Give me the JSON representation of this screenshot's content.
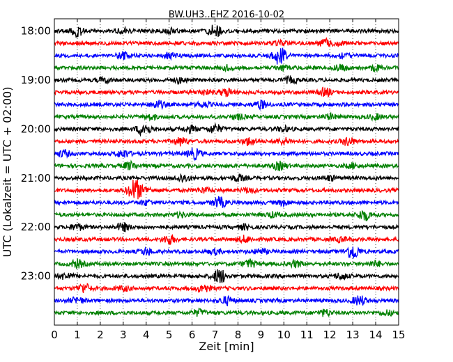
{
  "chart_data": {
    "type": "line",
    "title": "BW.UH3..EHZ 2016-10-02",
    "xlabel": "Zeit  [min]",
    "ylabel": "UTC (Lokalzeit = UTC + 02:00)",
    "xlim": [
      0,
      15
    ],
    "x_ticks": [
      0,
      1,
      2,
      3,
      4,
      5,
      6,
      7,
      8,
      9,
      10,
      11,
      12,
      13,
      14,
      15
    ],
    "x_tick_labels": [
      "0",
      "1",
      "2",
      "3",
      "4",
      "5",
      "6",
      "7",
      "8",
      "9",
      "10",
      "11",
      "12",
      "13",
      "14",
      "15"
    ],
    "ylim": [
      "24:00",
      "17:45"
    ],
    "y_ticks": [
      "18:00",
      "19:00",
      "20:00",
      "21:00",
      "22:00",
      "23:00"
    ],
    "line_interval_min": 15,
    "grid": "vertical-dotted",
    "colors": [
      "#000000",
      "#ff0000",
      "#0000ff",
      "#008000"
    ],
    "series": [
      {
        "start": "18:00",
        "bursts": [
          [
            1.0,
            0.6
          ],
          [
            7.0,
            0.9
          ],
          [
            5.0,
            0.3
          ],
          [
            3.0,
            0.3
          ]
        ]
      },
      {
        "start": "18:15",
        "bursts": [
          [
            11.8,
            0.5
          ],
          [
            9.8,
            0.3
          ],
          [
            12.3,
            0.3
          ]
        ]
      },
      {
        "start": "18:30",
        "bursts": [
          [
            9.8,
            1.2
          ],
          [
            3.0,
            0.4
          ],
          [
            5.0,
            0.3
          ],
          [
            12.5,
            0.3
          ]
        ]
      },
      {
        "start": "18:45",
        "bursts": [
          [
            7.5,
            0.3
          ],
          [
            12.5,
            0.4
          ],
          [
            10.0,
            0.3
          ],
          [
            14.0,
            0.3
          ]
        ]
      },
      {
        "start": "19:00",
        "bursts": [
          [
            10.3,
            0.4
          ],
          [
            2.2,
            0.3
          ],
          [
            5.5,
            0.3
          ]
        ]
      },
      {
        "start": "19:15",
        "bursts": [
          [
            7.5,
            0.5
          ],
          [
            11.8,
            0.5
          ],
          [
            6.5,
            0.3
          ]
        ]
      },
      {
        "start": "19:30",
        "bursts": [
          [
            4.5,
            0.5
          ],
          [
            9.0,
            0.5
          ],
          [
            6.5,
            0.3
          ]
        ]
      },
      {
        "start": "19:45",
        "bursts": [
          [
            4.2,
            0.3
          ],
          [
            8.0,
            0.3
          ],
          [
            12.0,
            0.3
          ],
          [
            14.0,
            0.3
          ]
        ]
      },
      {
        "start": "20:00",
        "bursts": [
          [
            3.9,
            0.9
          ],
          [
            7.0,
            0.6
          ],
          [
            5.9,
            0.4
          ],
          [
            10.0,
            0.3
          ]
        ]
      },
      {
        "start": "20:15",
        "bursts": [
          [
            5.5,
            0.5
          ],
          [
            8.5,
            0.5
          ],
          [
            12.8,
            0.5
          ],
          [
            10.0,
            0.4
          ]
        ]
      },
      {
        "start": "20:30",
        "bursts": [
          [
            6.1,
            0.7
          ],
          [
            3.0,
            0.5
          ],
          [
            0.4,
            0.4
          ]
        ]
      },
      {
        "start": "20:45",
        "bursts": [
          [
            3.3,
            0.5
          ],
          [
            9.8,
            0.5
          ],
          [
            13.0,
            0.3
          ]
        ]
      },
      {
        "start": "21:00",
        "bursts": [
          [
            5.6,
            0.5
          ],
          [
            8.0,
            0.4
          ],
          [
            12.0,
            0.3
          ]
        ]
      },
      {
        "start": "21:15",
        "bursts": [
          [
            3.5,
            1.5
          ],
          [
            4.0,
            0.3
          ],
          [
            6.5,
            0.3
          ],
          [
            8.5,
            0.3
          ]
        ]
      },
      {
        "start": "21:30",
        "bursts": [
          [
            7.2,
            0.7
          ],
          [
            4.0,
            0.3
          ],
          [
            10.0,
            0.3
          ]
        ]
      },
      {
        "start": "21:45",
        "bursts": [
          [
            13.5,
            0.7
          ],
          [
            9.5,
            0.3
          ],
          [
            5.5,
            0.3
          ]
        ]
      },
      {
        "start": "22:00",
        "bursts": [
          [
            3.0,
            0.5
          ],
          [
            1.0,
            0.4
          ],
          [
            8.3,
            0.3
          ]
        ]
      },
      {
        "start": "22:15",
        "bursts": [
          [
            5.0,
            0.6
          ],
          [
            8.3,
            0.4
          ],
          [
            12.5,
            0.3
          ]
        ]
      },
      {
        "start": "22:30",
        "bursts": [
          [
            13.0,
            1.0
          ],
          [
            4.0,
            0.4
          ],
          [
            7.0,
            0.3
          ],
          [
            9.0,
            0.3
          ]
        ]
      },
      {
        "start": "22:45",
        "bursts": [
          [
            1.0,
            0.5
          ],
          [
            8.5,
            0.5
          ],
          [
            10.5,
            0.4
          ],
          [
            14.0,
            0.3
          ]
        ]
      },
      {
        "start": "23:00",
        "bursts": [
          [
            7.2,
            1.0
          ],
          [
            0.5,
            0.4
          ],
          [
            12.5,
            0.4
          ]
        ]
      },
      {
        "start": "23:15",
        "bursts": [
          [
            1.3,
            0.6
          ],
          [
            6.5,
            0.5
          ],
          [
            3.0,
            0.3
          ]
        ]
      },
      {
        "start": "23:30",
        "bursts": [
          [
            13.3,
            0.6
          ],
          [
            7.5,
            0.5
          ],
          [
            1.0,
            0.4
          ]
        ]
      },
      {
        "start": "23:45",
        "bursts": [
          [
            6.3,
            0.4
          ],
          [
            11.8,
            0.4
          ],
          [
            14.5,
            0.3
          ]
        ]
      }
    ]
  }
}
